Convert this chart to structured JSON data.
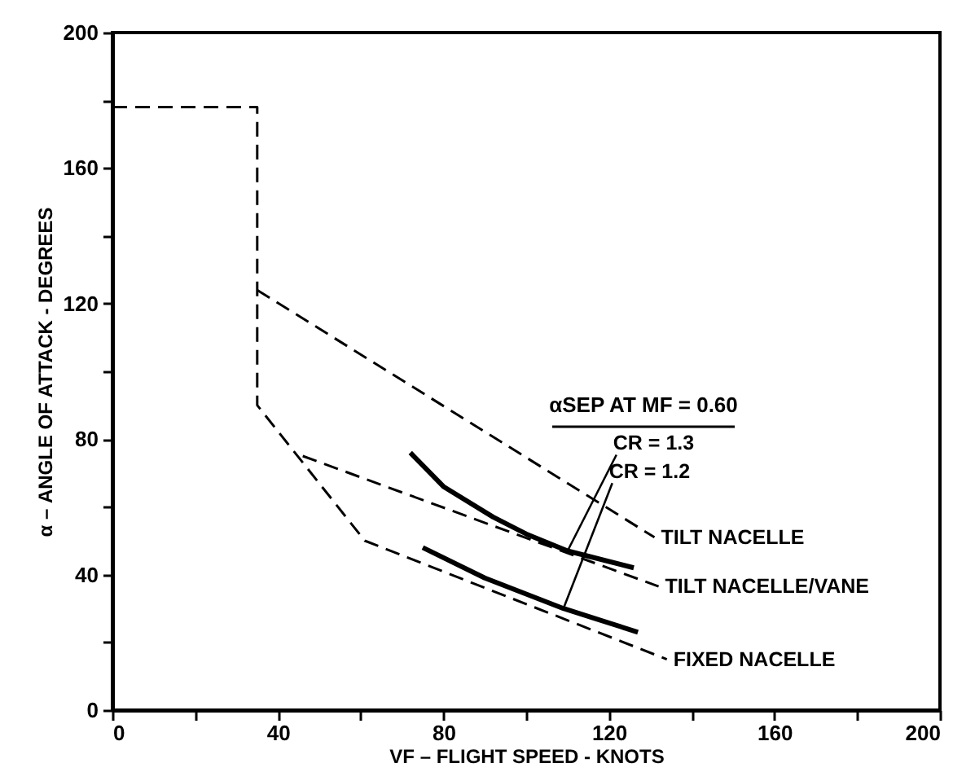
{
  "chart_data": {
    "type": "line",
    "xlabel": "VF – FLIGHT SPEED - KNOTS",
    "ylabel": "α – ANGLE OF ATTACK - DEGREES",
    "xlim": [
      0,
      200
    ],
    "ylim": [
      0,
      200
    ],
    "xticks": [
      0,
      {
        "value": 20,
        "label": null
      },
      40,
      {
        "value": 60,
        "label": null
      },
      80,
      {
        "value": 100,
        "label": null
      },
      120,
      {
        "value": 140,
        "label": null
      },
      160,
      {
        "value": 180,
        "label": null
      },
      200
    ],
    "yticks": [
      0,
      {
        "value": 20,
        "label": null
      },
      40,
      {
        "value": 60,
        "label": null
      },
      80,
      {
        "value": 100,
        "label": null
      },
      120,
      {
        "value": 140,
        "label": null
      },
      160,
      {
        "value": 180,
        "label": null
      },
      200
    ],
    "grid": false,
    "marker": "none",
    "series": [
      {
        "name": "TILT NACELLE",
        "color": "#000000",
        "line_style": "dashed",
        "x": [
          35,
          131
        ],
        "values": [
          124,
          51
        ]
      },
      {
        "name": "TILT NACELLE/VANE",
        "color": "#000000",
        "line_style": "dashed",
        "x": [
          46,
          132
        ],
        "values": [
          75,
          36.5
        ]
      },
      {
        "name": "FIXED NACELLE",
        "color": "#000000",
        "line_style": "dashed",
        "x": [
          0,
          35,
          35,
          61,
          134
        ],
        "values": [
          178,
          178,
          90,
          50,
          15
        ]
      },
      {
        "color": "#000000",
        "line_style": "solid",
        "x": [
          72,
          80,
          92,
          100,
          110,
          126
        ],
        "values": [
          76,
          66,
          57,
          52,
          47,
          42
        ]
      },
      {
        "color": "#000000",
        "line_style": "solid",
        "x": [
          75,
          90,
          109,
          127
        ],
        "values": [
          48,
          39,
          30,
          23
        ]
      }
    ],
    "annotations": [
      "αSEP AT MF = 0.60",
      {
        "text": "CR = 1.3",
        "x": 110,
        "y": 47
      },
      {
        "text": "CR = 1.2",
        "x": 109,
        "y": 30
      }
    ]
  }
}
